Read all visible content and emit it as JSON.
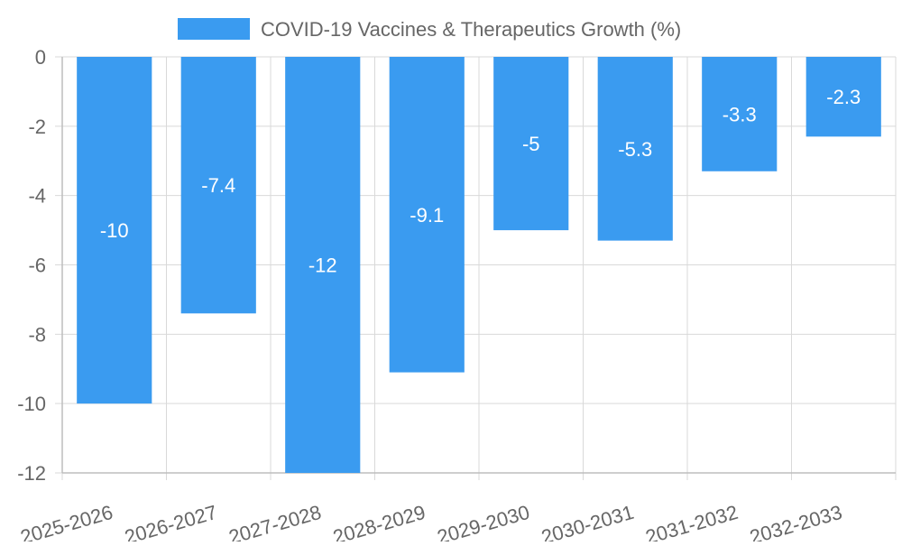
{
  "chart_data": {
    "type": "bar",
    "categories": [
      "2025-2026",
      "2026-2027",
      "2027-2028",
      "2028-2029",
      "2029-2030",
      "2030-2031",
      "2031-2032",
      "2032-2033"
    ],
    "series": [
      {
        "name": "COVID-19 Vaccines & Therapeutics Growth (%)",
        "values": [
          -10,
          -7.4,
          -12,
          -9.1,
          -5,
          -5.3,
          -3.3,
          -2.3
        ],
        "color": "#3a9bf0"
      }
    ],
    "data_labels": [
      "-10",
      "-7.4",
      "-12",
      "-9.1",
      "-5",
      "-5.3",
      "-3.3",
      "-2.3"
    ],
    "y_ticks": [
      "0",
      "-2",
      "-4",
      "-6",
      "-8",
      "-10",
      "-12"
    ],
    "ylim": [
      -12,
      0
    ],
    "title": "",
    "xlabel": "",
    "ylabel": "",
    "grid": true,
    "legend_position": "top-center"
  }
}
